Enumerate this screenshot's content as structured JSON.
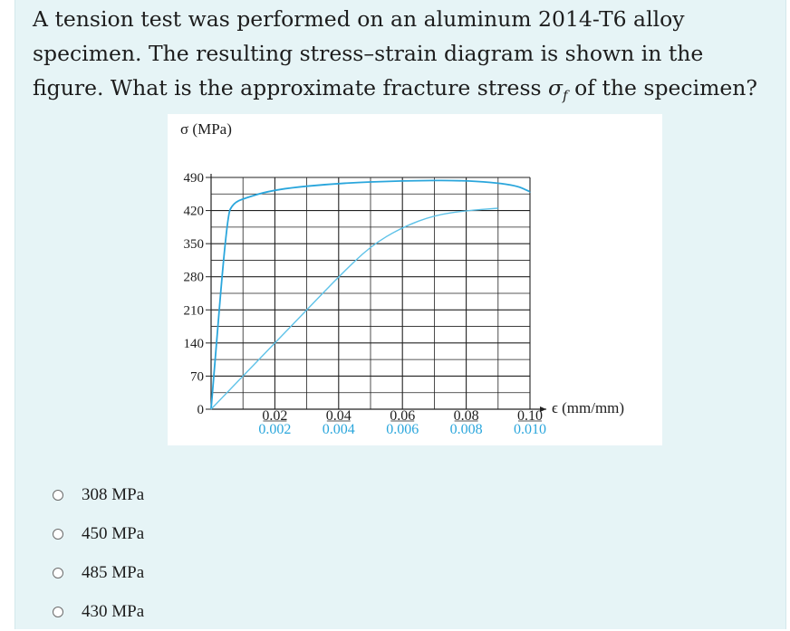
{
  "question": {
    "line1": "A tension test was performed on an aluminum 2014-T6 alloy",
    "line2": "specimen. The resulting stress–strain diagram is shown in the",
    "line3_pre": "figure. What is the approximate fracture stress ",
    "line3_sym": "σ",
    "line3_sub": "f",
    "line3_post": " of the specimen?"
  },
  "chart_data": {
    "type": "line",
    "ylabel": "σ (MPa)",
    "xlabel": "ϵ (mm/mm)",
    "y_ticks": [
      "490",
      "420",
      "350",
      "280",
      "210",
      "140",
      "70",
      "0"
    ],
    "y_values": [
      490,
      420,
      350,
      280,
      210,
      140,
      70,
      0
    ],
    "x_ticks_upper": [
      "0.02",
      "0.04",
      "0.06",
      "0.08",
      "0.10"
    ],
    "x_ticks_lower": [
      "0.002",
      "0.004",
      "0.006",
      "0.008",
      "0.010"
    ],
    "ylim": [
      0,
      490
    ],
    "xlim_upper": [
      0,
      0.1
    ],
    "xlim_lower": [
      0,
      0.01
    ],
    "grid": true,
    "series": [
      {
        "scale": "upper",
        "x": [
          0,
          0.005,
          0.007,
          0.01,
          0.02,
          0.04,
          0.06,
          0.08,
          0.095,
          0.1
        ],
        "y": [
          0,
          410,
          435,
          445,
          465,
          478,
          483,
          484,
          475,
          460
        ],
        "color": "#2aa6dc"
      },
      {
        "scale": "lower",
        "x": [
          0,
          0.001,
          0.002,
          0.003,
          0.004,
          0.005,
          0.006,
          0.007,
          0.008,
          0.009
        ],
        "y": [
          0,
          70,
          140,
          210,
          280,
          345,
          385,
          410,
          420,
          425
        ],
        "color": "#5ec2e8"
      }
    ]
  },
  "options": [
    "308 MPa",
    "450 MPa",
    "485 MPa",
    "430 MPa"
  ],
  "colors": {
    "background": "#e6f4f6",
    "curve": "#2aa6dc"
  }
}
